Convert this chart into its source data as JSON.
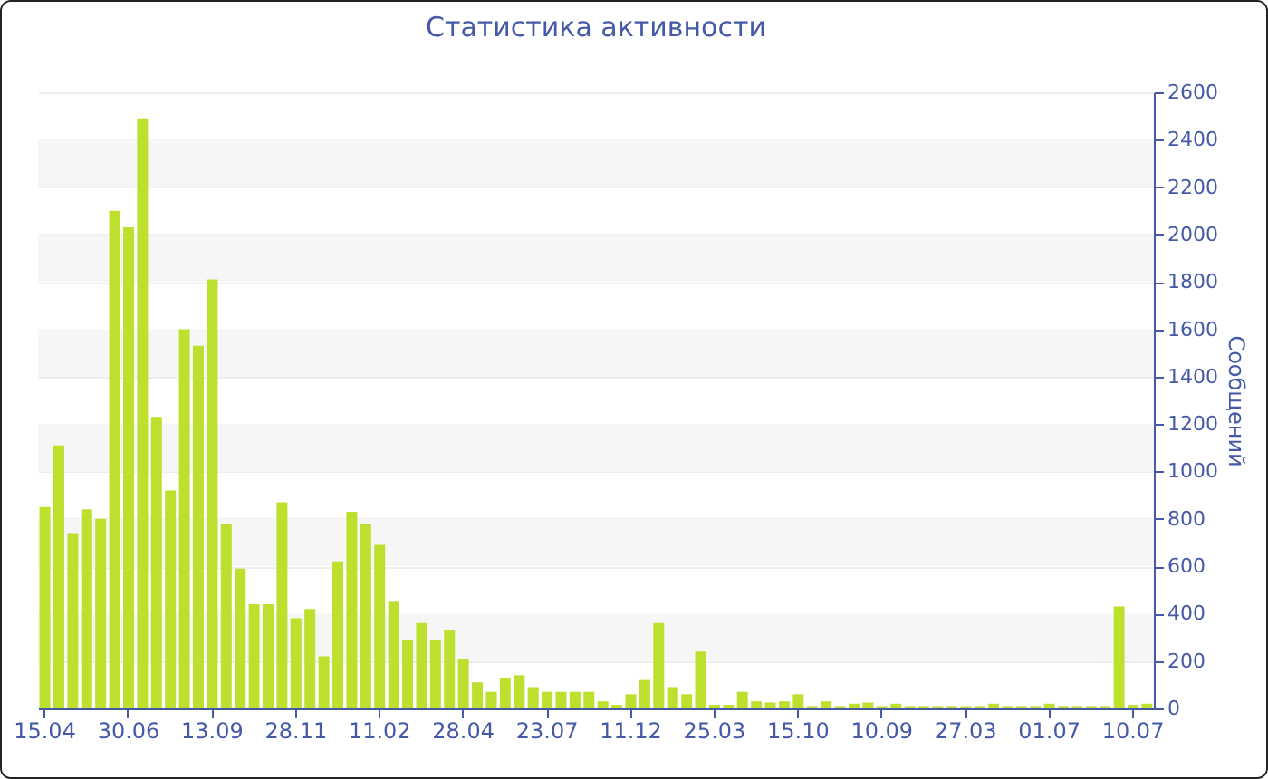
{
  "chart_data": {
    "type": "bar",
    "title": "Статистика активности",
    "ylabel": "Сообщений",
    "categories": [
      "15.04",
      null,
      null,
      null,
      null,
      null,
      "30.06",
      null,
      null,
      null,
      null,
      null,
      "13.09",
      null,
      null,
      null,
      null,
      null,
      "28.11",
      null,
      null,
      null,
      null,
      null,
      "11.02",
      null,
      null,
      null,
      null,
      null,
      "28.04",
      null,
      null,
      null,
      null,
      null,
      "23.07",
      null,
      null,
      null,
      null,
      null,
      "11.12",
      null,
      null,
      null,
      null,
      null,
      "25.03",
      null,
      null,
      null,
      null,
      null,
      "15.10",
      null,
      null,
      null,
      null,
      null,
      "10.09",
      null,
      null,
      null,
      null,
      null,
      "27.03",
      null,
      null,
      null,
      null,
      null,
      "01.07",
      null,
      null,
      null,
      null,
      null,
      "10.07",
      null
    ],
    "values": [
      850,
      1110,
      740,
      840,
      800,
      2100,
      2030,
      2490,
      1230,
      920,
      1600,
      1530,
      1810,
      780,
      590,
      440,
      440,
      870,
      380,
      420,
      220,
      620,
      830,
      780,
      690,
      450,
      290,
      360,
      290,
      330,
      210,
      110,
      70,
      130,
      140,
      90,
      70,
      70,
      70,
      70,
      30,
      15,
      60,
      120,
      360,
      90,
      60,
      240,
      15,
      15,
      70,
      30,
      25,
      30,
      60,
      10,
      30,
      10,
      20,
      25,
      10,
      20,
      10,
      10,
      10,
      10,
      10,
      10,
      20,
      10,
      10,
      10,
      20,
      10,
      10,
      10,
      10,
      430,
      15,
      20
    ],
    "color": "#bde02f",
    "ylim": [
      0,
      2600
    ],
    "yticks": [
      0,
      200,
      400,
      600,
      800,
      1000,
      1200,
      1400,
      1600,
      1800,
      2000,
      2200,
      2400,
      2600
    ],
    "grid": "y"
  }
}
